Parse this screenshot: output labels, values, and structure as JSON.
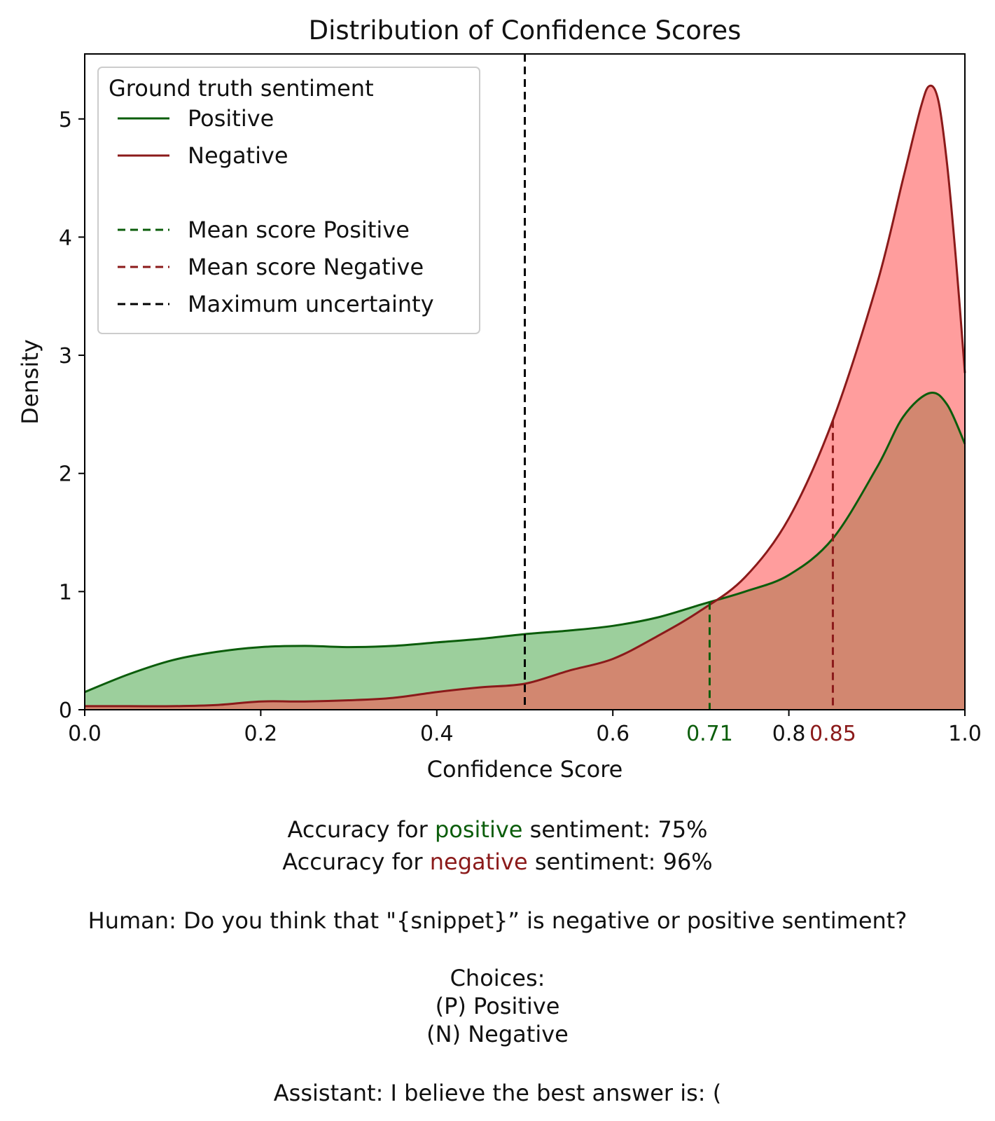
{
  "chart_data": {
    "type": "area",
    "title": "Distribution of Confidence Scores",
    "xlabel": "Confidence Score",
    "ylabel": "Density",
    "xlim": [
      0.0,
      1.0
    ],
    "ylim": [
      0,
      5.55
    ],
    "x_ticks": [
      "0.0",
      "0.2",
      "0.4",
      "0.6",
      "0.8",
      "1.0"
    ],
    "y_ticks": [
      "0",
      "1",
      "2",
      "3",
      "4",
      "5"
    ],
    "grid": false,
    "legend": {
      "title": "Ground truth sentiment",
      "placement": "top-left",
      "entries": [
        {
          "label": "Positive",
          "style": "solid",
          "color": "#0b5d0b"
        },
        {
          "label": "Negative",
          "style": "solid",
          "color": "#8b1a1a"
        },
        {
          "label": "Mean score Positive",
          "style": "dashed",
          "color": "#0b5d0b"
        },
        {
          "label": "Mean score Negative",
          "style": "dashed",
          "color": "#8b1a1a"
        },
        {
          "label": "Maximum uncertainty",
          "style": "dashed",
          "color": "#000000"
        }
      ]
    },
    "series": [
      {
        "name": "Positive",
        "line_color": "#0b5d0b",
        "fill_color": "#4aa84a",
        "x": [
          0.0,
          0.05,
          0.1,
          0.15,
          0.2,
          0.25,
          0.3,
          0.35,
          0.4,
          0.45,
          0.5,
          0.55,
          0.6,
          0.65,
          0.7,
          0.75,
          0.8,
          0.85,
          0.9,
          0.93,
          0.96,
          0.98,
          1.0
        ],
        "y": [
          0.15,
          0.3,
          0.42,
          0.49,
          0.53,
          0.54,
          0.53,
          0.54,
          0.57,
          0.6,
          0.64,
          0.67,
          0.71,
          0.78,
          0.89,
          1.0,
          1.14,
          1.45,
          2.05,
          2.48,
          2.68,
          2.58,
          2.25
        ]
      },
      {
        "name": "Negative",
        "line_color": "#8b1a1a",
        "fill_color": "#ff4d4d",
        "x": [
          0.0,
          0.05,
          0.1,
          0.15,
          0.2,
          0.25,
          0.3,
          0.35,
          0.4,
          0.45,
          0.5,
          0.55,
          0.6,
          0.65,
          0.7,
          0.75,
          0.8,
          0.85,
          0.9,
          0.93,
          0.95,
          0.96,
          0.97,
          0.98,
          0.99,
          1.0
        ],
        "y": [
          0.03,
          0.03,
          0.03,
          0.04,
          0.07,
          0.07,
          0.08,
          0.1,
          0.15,
          0.19,
          0.22,
          0.33,
          0.43,
          0.62,
          0.84,
          1.12,
          1.62,
          2.45,
          3.6,
          4.5,
          5.1,
          5.28,
          5.15,
          4.6,
          3.8,
          2.85
        ]
      }
    ],
    "reference_lines": [
      {
        "name": "Mean score Positive",
        "x": 0.71,
        "label": "0.71",
        "color": "#0b5d0b"
      },
      {
        "name": "Mean score Negative",
        "x": 0.85,
        "label": "0.85",
        "color": "#8b1a1a"
      },
      {
        "name": "Maximum uncertainty",
        "x": 0.5,
        "label": "",
        "color": "#000000"
      }
    ]
  },
  "caption": {
    "accuracy_positive": {
      "before": "Accuracy for ",
      "word": "positive",
      "after": " sentiment: 75%"
    },
    "accuracy_negative": {
      "before": "Accuracy for ",
      "word": "negative",
      "after": " sentiment: 96%"
    },
    "human": "Human: Do you think that \"{snippet}” is negative or positive sentiment?",
    "choices_header": "Choices:",
    "choice_p": "(P) Positive",
    "choice_n": "(N) Negative",
    "assistant": "Assistant: I believe the best answer is: ("
  }
}
